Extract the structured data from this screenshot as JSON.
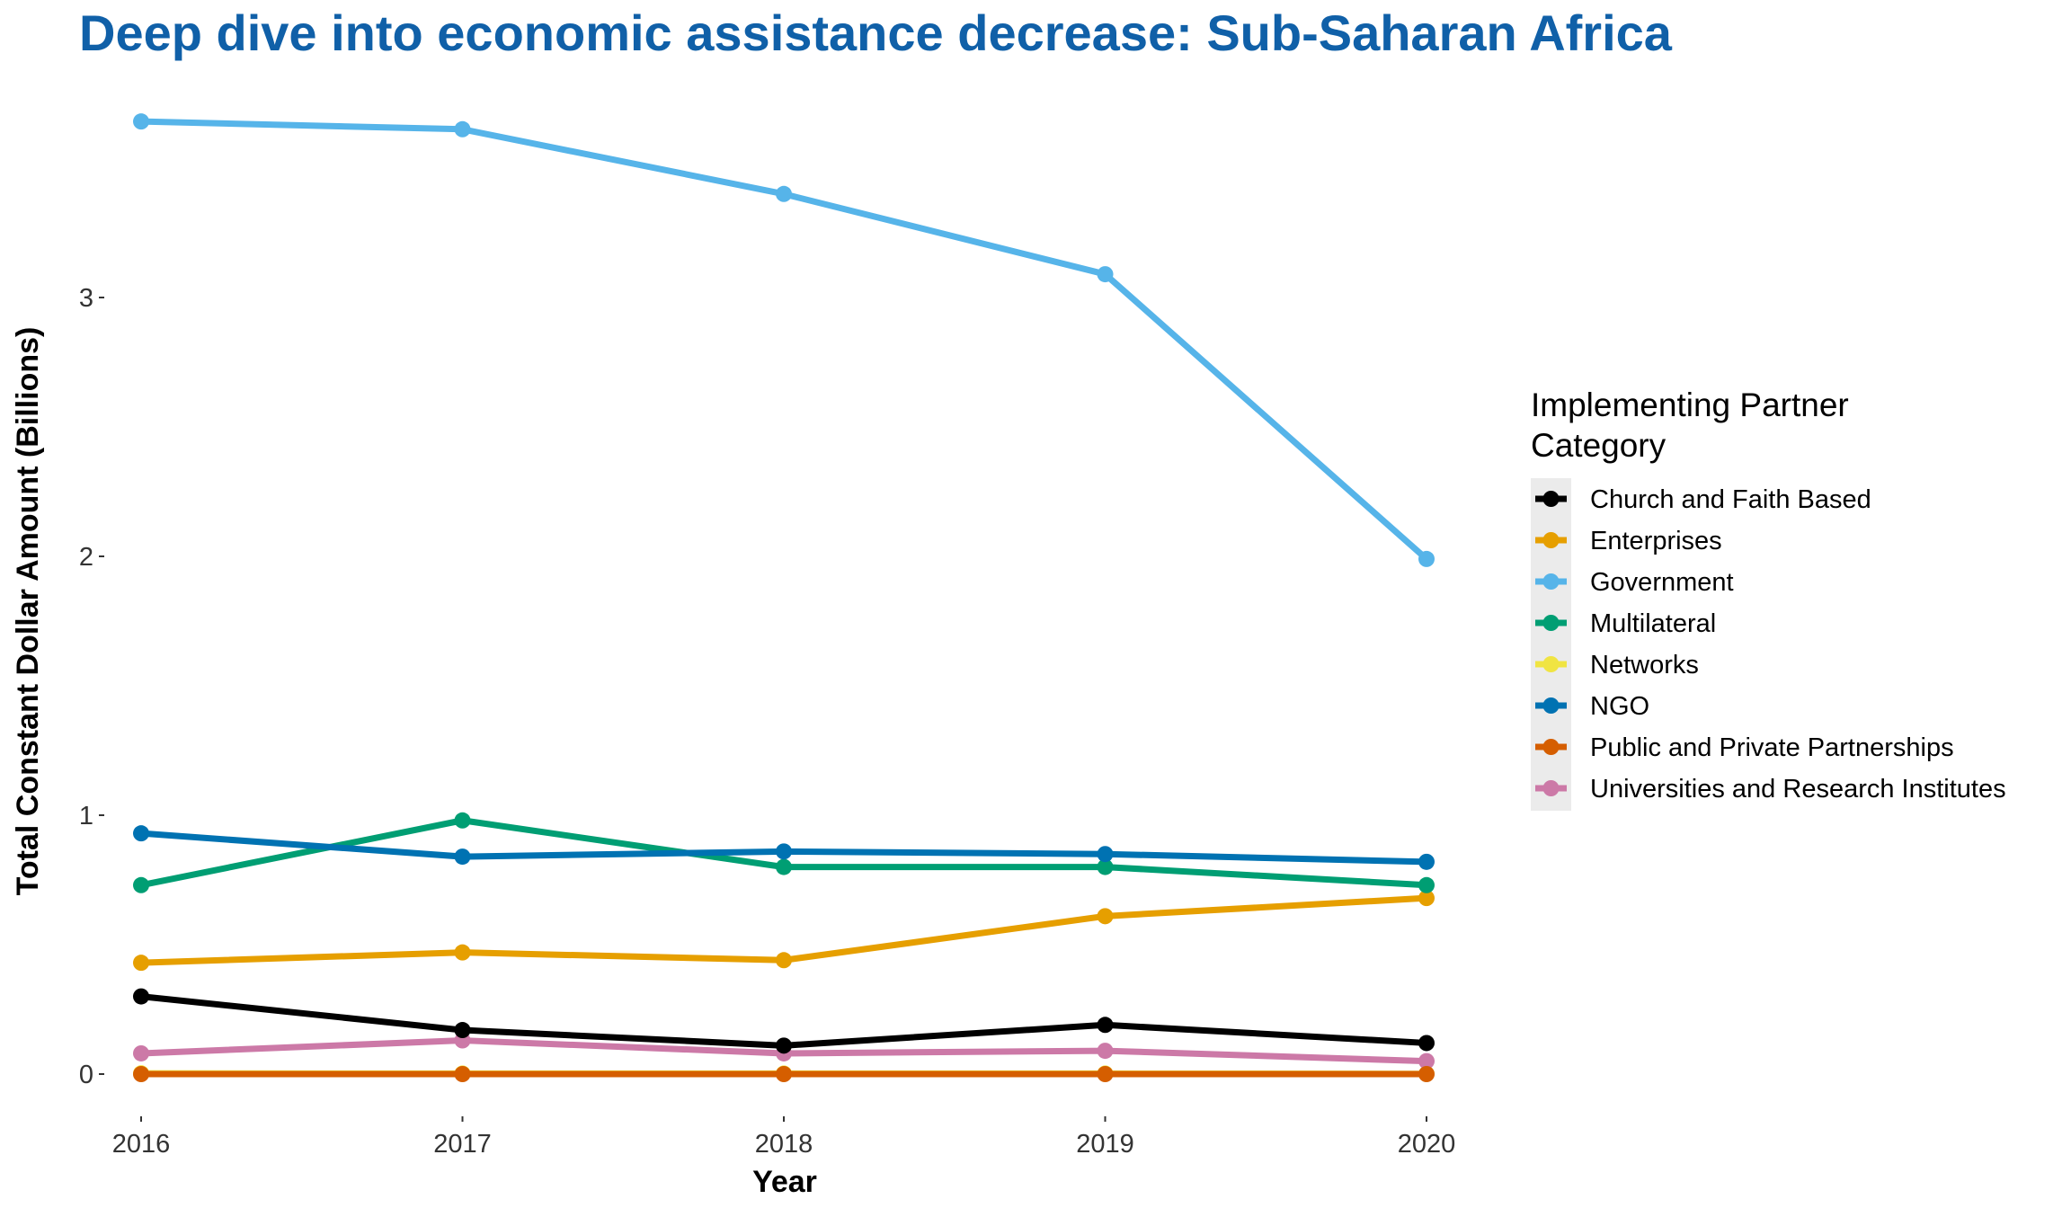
{
  "chart_data": {
    "type": "line",
    "title": "Deep dive into economic assistance decrease: Sub-Saharan Africa",
    "xlabel": "Year",
    "ylabel": "Total Constant Dollar Amount (Billions)",
    "x": [
      2016,
      2017,
      2018,
      2019,
      2020
    ],
    "x_tick_labels": [
      "2016",
      "2017",
      "2018",
      "2019",
      "2020"
    ],
    "y_ticks": [
      0,
      1,
      2,
      3
    ],
    "y_tick_labels": [
      "0",
      "1",
      "2",
      "3"
    ],
    "ylim": [
      -0.16,
      3.78
    ],
    "grid": false,
    "legend_title_lines": [
      "Implementing Partner",
      "Category"
    ],
    "legend_position": "right",
    "series": [
      {
        "name": "Church and Faith Based",
        "color": "#000000",
        "values": [
          0.3,
          0.17,
          0.11,
          0.19,
          0.12
        ]
      },
      {
        "name": "Enterprises",
        "color": "#E69F00",
        "values": [
          0.43,
          0.47,
          0.44,
          0.61,
          0.68
        ]
      },
      {
        "name": "Government",
        "color": "#56B4E9",
        "values": [
          3.68,
          3.65,
          3.4,
          3.09,
          1.99
        ]
      },
      {
        "name": "Multilateral",
        "color": "#009E73",
        "values": [
          0.73,
          0.98,
          0.8,
          0.8,
          0.73
        ]
      },
      {
        "name": "Networks",
        "color": "#F0E442",
        "values": [
          0.003,
          0.002,
          0.002,
          0.002,
          0.001
        ]
      },
      {
        "name": "NGO",
        "color": "#0072B2",
        "values": [
          0.93,
          0.84,
          0.86,
          0.85,
          0.82
        ]
      },
      {
        "name": "Public and Private Partnerships",
        "color": "#D55E00",
        "values": [
          0.0,
          0.0,
          0.0,
          0.0,
          0.0
        ]
      },
      {
        "name": "Universities and Research Institutes",
        "color": "#CC79A7",
        "values": [
          0.08,
          0.13,
          0.08,
          0.09,
          0.05
        ]
      }
    ],
    "draw_order": [
      "Networks",
      "Universities and Research Institutes",
      "Church and Faith Based",
      "Enterprises",
      "Multilateral",
      "NGO",
      "Government",
      "Public and Private Partnerships"
    ]
  }
}
